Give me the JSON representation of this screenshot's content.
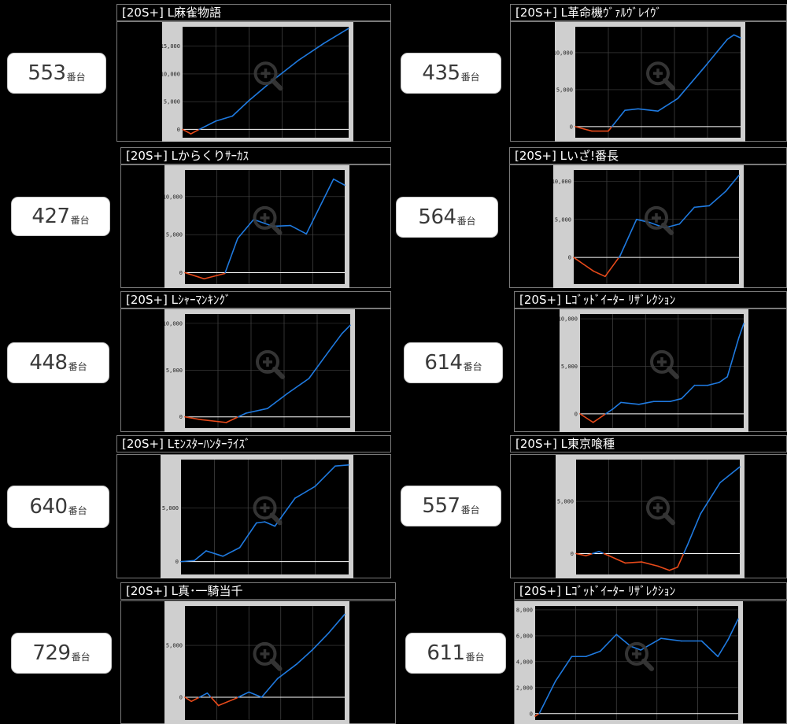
{
  "machines": [
    {
      "unit_number": "553",
      "unit_suffix": "番台",
      "title": "[20S+]  L麻雀物語",
      "y_ticks": [
        "15,000",
        "10,000",
        "5,000",
        "0"
      ],
      "tick_values": [
        15000,
        10000,
        5000,
        0
      ],
      "ylim": [
        -1500,
        18500
      ],
      "points": [
        [
          0,
          0
        ],
        [
          0.05,
          -800
        ],
        [
          0.1,
          0
        ],
        [
          0.2,
          1500
        ],
        [
          0.3,
          2400
        ],
        [
          0.4,
          5200
        ],
        [
          0.55,
          9000
        ],
        [
          0.7,
          12500
        ],
        [
          0.85,
          15500
        ],
        [
          1,
          18200
        ]
      ]
    },
    {
      "unit_number": "435",
      "unit_suffix": "番台",
      "title": "[20S+]  L革命機ｳﾞｧﾙｳﾞﾚｲｳﾞ",
      "y_ticks": [
        "10,000",
        "5,000",
        "0"
      ],
      "tick_values": [
        10000,
        5000,
        0
      ],
      "ylim": [
        -1500,
        13500
      ],
      "points": [
        [
          0,
          0
        ],
        [
          0.1,
          -600
        ],
        [
          0.2,
          -600
        ],
        [
          0.3,
          2200
        ],
        [
          0.38,
          2400
        ],
        [
          0.5,
          2100
        ],
        [
          0.62,
          3800
        ],
        [
          0.78,
          8000
        ],
        [
          0.92,
          11800
        ],
        [
          0.96,
          12400
        ],
        [
          1,
          12000
        ]
      ]
    },
    {
      "unit_number": "427",
      "unit_suffix": "番台",
      "title": "[20S+]  Lからくりｻｰｶｽ",
      "y_ticks": [
        "10,000",
        "5,000",
        "0"
      ],
      "tick_values": [
        10000,
        5000,
        0
      ],
      "ylim": [
        -1500,
        13500
      ],
      "points": [
        [
          0,
          0
        ],
        [
          0.12,
          -800
        ],
        [
          0.25,
          -100
        ],
        [
          0.33,
          4500
        ],
        [
          0.43,
          7000
        ],
        [
          0.55,
          6100
        ],
        [
          0.66,
          6200
        ],
        [
          0.76,
          5100
        ],
        [
          0.93,
          12300
        ],
        [
          1,
          11500
        ]
      ]
    },
    {
      "unit_number": "564",
      "unit_suffix": "番台",
      "title": "[20S+]  Lいざ!番長",
      "y_ticks": [
        "10,000",
        "5,000",
        "0"
      ],
      "tick_values": [
        10000,
        5000,
        0
      ],
      "ylim": [
        -3500,
        11500
      ],
      "points": [
        [
          0,
          0
        ],
        [
          0.06,
          -900
        ],
        [
          0.12,
          -1800
        ],
        [
          0.19,
          -2500
        ],
        [
          0.28,
          200
        ],
        [
          0.38,
          5000
        ],
        [
          0.46,
          4600
        ],
        [
          0.55,
          3900
        ],
        [
          0.64,
          4400
        ],
        [
          0.73,
          6600
        ],
        [
          0.82,
          6800
        ],
        [
          0.92,
          8700
        ],
        [
          1,
          10800
        ]
      ]
    },
    {
      "unit_number": "448",
      "unit_suffix": "番台",
      "title": "[20S+]  Lｼｬｰﾏﾝｷﾝｸﾞ",
      "y_ticks": [
        "10,000",
        "5,000",
        "0"
      ],
      "tick_values": [
        10000,
        5000,
        0
      ],
      "ylim": [
        -1200,
        11000
      ],
      "points": [
        [
          0,
          0
        ],
        [
          0.1,
          -300
        ],
        [
          0.25,
          -600
        ],
        [
          0.37,
          400
        ],
        [
          0.5,
          900
        ],
        [
          0.62,
          2500
        ],
        [
          0.75,
          4100
        ],
        [
          0.87,
          7000
        ],
        [
          0.95,
          8900
        ],
        [
          1,
          9800
        ]
      ]
    },
    {
      "unit_number": "614",
      "unit_suffix": "番台",
      "title": "[20S+]  Lｺﾞｯﾄﾞｲｰﾀｰ ﾘｻﾞﾚｸｼｮﾝ",
      "y_ticks": [
        "10,000",
        "5,000",
        "0"
      ],
      "tick_values": [
        10000,
        5000,
        0
      ],
      "ylim": [
        -1500,
        10500
      ],
      "points": [
        [
          0,
          0
        ],
        [
          0.08,
          -900
        ],
        [
          0.2,
          500
        ],
        [
          0.25,
          1200
        ],
        [
          0.36,
          1000
        ],
        [
          0.45,
          1300
        ],
        [
          0.55,
          1300
        ],
        [
          0.62,
          1600
        ],
        [
          0.7,
          3000
        ],
        [
          0.78,
          3000
        ],
        [
          0.85,
          3300
        ],
        [
          0.9,
          3900
        ],
        [
          0.97,
          8000
        ],
        [
          1,
          9500
        ]
      ]
    },
    {
      "unit_number": "640",
      "unit_suffix": "番台",
      "title": "[20S+]  Lﾓﾝｽﾀｰﾊﾝﾀｰﾗｲｽﾞ",
      "y_ticks": [
        "5,000",
        "0"
      ],
      "tick_values": [
        5000,
        0
      ],
      "ylim": [
        -1200,
        9500
      ],
      "points": [
        [
          0,
          0
        ],
        [
          0.08,
          100
        ],
        [
          0.15,
          1000
        ],
        [
          0.25,
          500
        ],
        [
          0.35,
          1300
        ],
        [
          0.45,
          3600
        ],
        [
          0.5,
          3700
        ],
        [
          0.56,
          3300
        ],
        [
          0.68,
          5900
        ],
        [
          0.8,
          7000
        ],
        [
          0.92,
          8900
        ],
        [
          1,
          9000
        ]
      ]
    },
    {
      "unit_number": "557",
      "unit_suffix": "番台",
      "title": "[20S+]  L東京喰種",
      "y_ticks": [
        "5,000",
        "0"
      ],
      "tick_values": [
        5000,
        0
      ],
      "ylim": [
        -2000,
        9000
      ],
      "points": [
        [
          0,
          0
        ],
        [
          0.06,
          -200
        ],
        [
          0.14,
          200
        ],
        [
          0.2,
          -200
        ],
        [
          0.3,
          -900
        ],
        [
          0.4,
          -800
        ],
        [
          0.5,
          -1200
        ],
        [
          0.57,
          -1600
        ],
        [
          0.62,
          -1300
        ],
        [
          0.68,
          800
        ],
        [
          0.76,
          3800
        ],
        [
          0.88,
          6800
        ],
        [
          1,
          8300
        ]
      ]
    },
    {
      "unit_number": "729",
      "unit_suffix": "番台",
      "title": "[20S+]  L真･一騎当千",
      "y_ticks": [
        "5,000",
        "0"
      ],
      "tick_values": [
        5000,
        0
      ],
      "ylim": [
        -2200,
        8800
      ],
      "points": [
        [
          0,
          0
        ],
        [
          0.04,
          -400
        ],
        [
          0.14,
          400
        ],
        [
          0.21,
          -800
        ],
        [
          0.32,
          -100
        ],
        [
          0.4,
          500
        ],
        [
          0.48,
          0
        ],
        [
          0.58,
          1800
        ],
        [
          0.7,
          3200
        ],
        [
          0.8,
          4600
        ],
        [
          0.9,
          6200
        ],
        [
          1,
          8000
        ]
      ]
    },
    {
      "unit_number": "611",
      "unit_suffix": "番台",
      "title": "[20S+]  Lｺﾞｯﾄﾞｲｰﾀｰ ﾘｻﾞﾚｸｼｮﾝ",
      "y_ticks": [
        "8,000",
        "6,000",
        "4,000",
        "2,000",
        "0"
      ],
      "tick_values": [
        8000,
        6000,
        4000,
        2000,
        0
      ],
      "ylim": [
        -500,
        8300
      ],
      "points": [
        [
          0,
          -200
        ],
        [
          0.02,
          0
        ],
        [
          0.1,
          2500
        ],
        [
          0.18,
          4400
        ],
        [
          0.25,
          4400
        ],
        [
          0.32,
          4800
        ],
        [
          0.4,
          6100
        ],
        [
          0.47,
          5200
        ],
        [
          0.52,
          4900
        ],
        [
          0.62,
          5800
        ],
        [
          0.72,
          5600
        ],
        [
          0.82,
          5600
        ],
        [
          0.9,
          4400
        ],
        [
          0.95,
          5700
        ],
        [
          1,
          7300
        ]
      ]
    }
  ],
  "colors": {
    "positive_line": "#1f7ae0",
    "negative_line": "#e84a1a",
    "zero_line": "#ffffff",
    "plot_bg": "#000000",
    "graph_frame_bg": "#cfcfcf",
    "zoom_icon": "#3a3a3a"
  },
  "icons": {
    "graph_zoom": "magnifier-plus-icon"
  }
}
